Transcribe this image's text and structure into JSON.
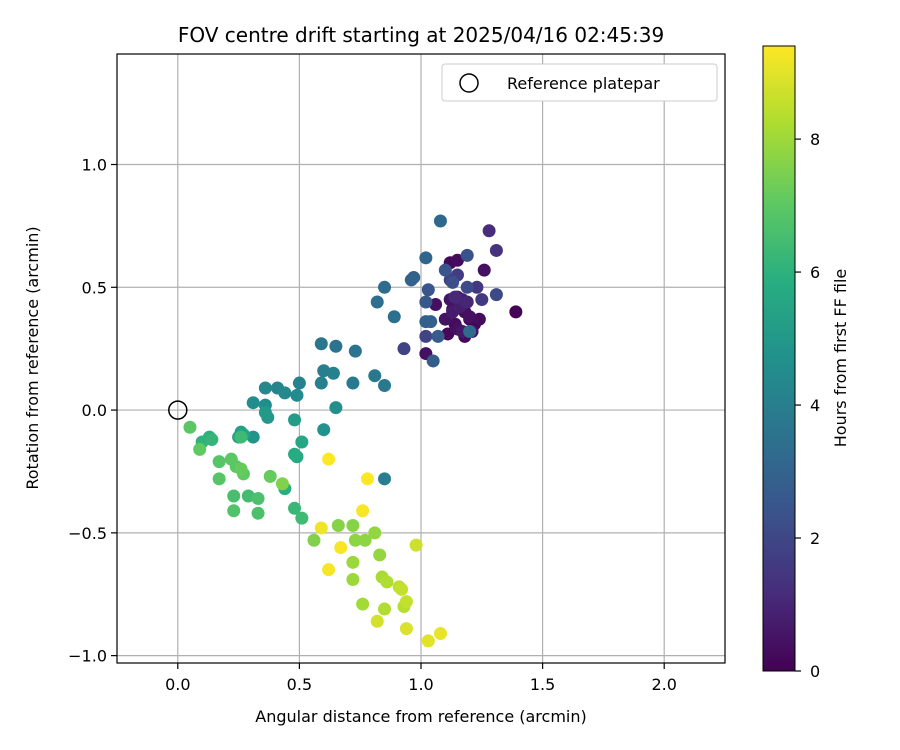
{
  "chart_data": {
    "type": "scatter",
    "title": "FOV centre drift starting at 2025/04/16 02:45:39",
    "xlabel": "Angular distance from reference (arcmin)",
    "ylabel": "Rotation from reference (arcmin)",
    "xlim": [
      -0.25,
      2.25
    ],
    "ylim": [
      -1.03,
      1.45
    ],
    "xticks": [
      0.0,
      0.5,
      1.0,
      1.5,
      2.0
    ],
    "yticks": [
      -1.0,
      -0.5,
      0.0,
      0.5,
      1.0
    ],
    "xtick_labels": [
      "0.0",
      "0.5",
      "1.0",
      "1.5",
      "2.0"
    ],
    "ytick_labels": [
      "−1.0",
      "−0.5",
      "0.0",
      "0.5",
      "1.0"
    ],
    "grid": true,
    "legend": {
      "position": "top-right",
      "entries": [
        "Reference platepar"
      ]
    },
    "colormap": "viridis",
    "colorbar": {
      "label": "Hours from first FF file",
      "range": [
        0,
        9.4
      ],
      "ticks": [
        0,
        2,
        4,
        6,
        8
      ],
      "tick_labels": [
        "0",
        "2",
        "4",
        "6",
        "8"
      ]
    },
    "reference_point": {
      "x": 0.0,
      "y": 0.0
    },
    "points": [
      {
        "x": 1.39,
        "y": 0.4,
        "c": 0.1
      },
      {
        "x": 1.12,
        "y": 0.6,
        "c": 0.2
      },
      {
        "x": 1.15,
        "y": 0.61,
        "c": 0.3
      },
      {
        "x": 1.2,
        "y": 0.37,
        "c": 0.2
      },
      {
        "x": 1.18,
        "y": 0.3,
        "c": 0.2
      },
      {
        "x": 1.22,
        "y": 0.35,
        "c": 0.1
      },
      {
        "x": 1.13,
        "y": 0.41,
        "c": 0.3
      },
      {
        "x": 1.16,
        "y": 0.43,
        "c": 0.4
      },
      {
        "x": 1.14,
        "y": 0.35,
        "c": 0.3
      },
      {
        "x": 1.11,
        "y": 0.31,
        "c": 0.2
      },
      {
        "x": 1.15,
        "y": 0.33,
        "c": 0.4
      },
      {
        "x": 1.18,
        "y": 0.4,
        "c": 0.3
      },
      {
        "x": 1.1,
        "y": 0.37,
        "c": 0.5
      },
      {
        "x": 1.24,
        "y": 0.37,
        "c": 0.3
      },
      {
        "x": 1.17,
        "y": 0.32,
        "c": 0.6
      },
      {
        "x": 1.21,
        "y": 0.32,
        "c": 0.5
      },
      {
        "x": 1.06,
        "y": 0.43,
        "c": 0.4
      },
      {
        "x": 1.12,
        "y": 0.45,
        "c": 0.5
      },
      {
        "x": 1.02,
        "y": 0.23,
        "c": 0.4
      },
      {
        "x": 1.26,
        "y": 0.57,
        "c": 0.4
      },
      {
        "x": 1.2,
        "y": 0.38,
        "c": 0.4
      },
      {
        "x": 1.15,
        "y": 0.46,
        "c": 0.6
      },
      {
        "x": 1.13,
        "y": 0.4,
        "c": 0.7
      },
      {
        "x": 1.16,
        "y": 0.42,
        "c": 0.8
      },
      {
        "x": 1.17,
        "y": 0.45,
        "c": 0.9
      },
      {
        "x": 1.19,
        "y": 0.44,
        "c": 1.0
      },
      {
        "x": 1.14,
        "y": 0.46,
        "c": 1.1
      },
      {
        "x": 1.28,
        "y": 0.73,
        "c": 1.2
      },
      {
        "x": 1.31,
        "y": 0.65,
        "c": 1.4
      },
      {
        "x": 1.23,
        "y": 0.5,
        "c": 1.5
      },
      {
        "x": 1.25,
        "y": 0.45,
        "c": 1.6
      },
      {
        "x": 1.15,
        "y": 0.55,
        "c": 1.7
      },
      {
        "x": 1.12,
        "y": 0.53,
        "c": 1.8
      },
      {
        "x": 1.02,
        "y": 0.3,
        "c": 1.9
      },
      {
        "x": 0.93,
        "y": 0.25,
        "c": 1.9
      },
      {
        "x": 1.31,
        "y": 0.47,
        "c": 2.1
      },
      {
        "x": 1.19,
        "y": 0.5,
        "c": 2.2
      },
      {
        "x": 1.13,
        "y": 0.52,
        "c": 2.3
      },
      {
        "x": 1.19,
        "y": 0.63,
        "c": 2.4
      },
      {
        "x": 1.1,
        "y": 0.57,
        "c": 2.5
      },
      {
        "x": 1.03,
        "y": 0.49,
        "c": 2.5
      },
      {
        "x": 1.02,
        "y": 0.44,
        "c": 2.6
      },
      {
        "x": 1.07,
        "y": 0.3,
        "c": 2.7
      },
      {
        "x": 1.05,
        "y": 0.2,
        "c": 2.8
      },
      {
        "x": 1.02,
        "y": 0.36,
        "c": 2.9
      },
      {
        "x": 1.04,
        "y": 0.36,
        "c": 2.9
      },
      {
        "x": 0.97,
        "y": 0.54,
        "c": 2.9
      },
      {
        "x": 0.96,
        "y": 0.53,
        "c": 3.0
      },
      {
        "x": 1.02,
        "y": 0.62,
        "c": 3.1
      },
      {
        "x": 1.08,
        "y": 0.77,
        "c": 3.2
      },
      {
        "x": 1.2,
        "y": 0.32,
        "c": 3.3
      },
      {
        "x": 0.85,
        "y": 0.5,
        "c": 3.3
      },
      {
        "x": 0.82,
        "y": 0.44,
        "c": 3.4
      },
      {
        "x": 0.89,
        "y": 0.38,
        "c": 3.5
      },
      {
        "x": 0.73,
        "y": 0.24,
        "c": 3.6
      },
      {
        "x": 0.65,
        "y": 0.26,
        "c": 3.6
      },
      {
        "x": 0.59,
        "y": 0.27,
        "c": 3.7
      },
      {
        "x": 0.81,
        "y": 0.14,
        "c": 3.8
      },
      {
        "x": 0.85,
        "y": 0.1,
        "c": 3.8
      },
      {
        "x": 0.72,
        "y": 0.11,
        "c": 3.9
      },
      {
        "x": 0.6,
        "y": 0.16,
        "c": 4.0
      },
      {
        "x": 0.59,
        "y": 0.11,
        "c": 4.1
      },
      {
        "x": 0.64,
        "y": 0.15,
        "c": 4.1
      },
      {
        "x": 0.5,
        "y": 0.11,
        "c": 4.2
      },
      {
        "x": 0.41,
        "y": 0.09,
        "c": 4.3
      },
      {
        "x": 0.36,
        "y": 0.09,
        "c": 4.4
      },
      {
        "x": 0.44,
        "y": 0.07,
        "c": 4.4
      },
      {
        "x": 0.49,
        "y": 0.06,
        "c": 4.5
      },
      {
        "x": 0.31,
        "y": 0.03,
        "c": 4.6
      },
      {
        "x": 0.36,
        "y": 0.02,
        "c": 4.6
      },
      {
        "x": 0.65,
        "y": 0.01,
        "c": 4.7
      },
      {
        "x": 0.85,
        "y": -0.28,
        "c": 4.0
      },
      {
        "x": 0.6,
        "y": -0.08,
        "c": 4.8
      },
      {
        "x": 0.31,
        "y": -0.11,
        "c": 4.9
      },
      {
        "x": 0.37,
        "y": -0.03,
        "c": 5.0
      },
      {
        "x": 0.36,
        "y": -0.01,
        "c": 5.1
      },
      {
        "x": 0.48,
        "y": -0.04,
        "c": 5.2
      },
      {
        "x": 0.26,
        "y": -0.09,
        "c": 5.3
      },
      {
        "x": 0.25,
        "y": -0.11,
        "c": 5.4
      },
      {
        "x": 0.27,
        "y": -0.1,
        "c": 5.5
      },
      {
        "x": 0.51,
        "y": -0.13,
        "c": 5.6
      },
      {
        "x": 0.49,
        "y": -0.19,
        "c": 5.7
      },
      {
        "x": 0.48,
        "y": -0.18,
        "c": 5.8
      },
      {
        "x": 0.44,
        "y": -0.32,
        "c": 5.9
      },
      {
        "x": 0.13,
        "y": -0.11,
        "c": 6.0
      },
      {
        "x": 0.1,
        "y": -0.13,
        "c": 6.1
      },
      {
        "x": 0.14,
        "y": -0.12,
        "c": 6.2
      },
      {
        "x": 0.48,
        "y": -0.4,
        "c": 6.3
      },
      {
        "x": 0.51,
        "y": -0.44,
        "c": 6.4
      },
      {
        "x": 0.26,
        "y": -0.11,
        "c": 6.4
      },
      {
        "x": 0.29,
        "y": -0.35,
        "c": 6.5
      },
      {
        "x": 0.23,
        "y": -0.35,
        "c": 6.6
      },
      {
        "x": 0.33,
        "y": -0.36,
        "c": 6.7
      },
      {
        "x": 0.33,
        "y": -0.42,
        "c": 6.7
      },
      {
        "x": 0.23,
        "y": -0.41,
        "c": 6.8
      },
      {
        "x": 0.17,
        "y": -0.28,
        "c": 6.9
      },
      {
        "x": 0.17,
        "y": -0.21,
        "c": 6.9
      },
      {
        "x": 0.22,
        "y": -0.2,
        "c": 7.0
      },
      {
        "x": 0.24,
        "y": -0.23,
        "c": 7.0
      },
      {
        "x": 0.27,
        "y": -0.26,
        "c": 7.1
      },
      {
        "x": 0.26,
        "y": -0.24,
        "c": 7.2
      },
      {
        "x": 0.38,
        "y": -0.27,
        "c": 7.2
      },
      {
        "x": 0.05,
        "y": -0.07,
        "c": 7.0
      },
      {
        "x": 0.09,
        "y": -0.16,
        "c": 7.1
      },
      {
        "x": 0.43,
        "y": -0.3,
        "c": 7.6
      },
      {
        "x": 0.56,
        "y": -0.53,
        "c": 7.6
      },
      {
        "x": 0.66,
        "y": -0.47,
        "c": 7.7
      },
      {
        "x": 0.72,
        "y": -0.47,
        "c": 7.7
      },
      {
        "x": 0.73,
        "y": -0.53,
        "c": 7.8
      },
      {
        "x": 0.77,
        "y": -0.53,
        "c": 7.8
      },
      {
        "x": 0.81,
        "y": -0.5,
        "c": 7.9
      },
      {
        "x": 0.83,
        "y": -0.59,
        "c": 7.9
      },
      {
        "x": 0.72,
        "y": -0.62,
        "c": 8.0
      },
      {
        "x": 0.72,
        "y": -0.69,
        "c": 8.0
      },
      {
        "x": 0.76,
        "y": -0.79,
        "c": 8.1
      },
      {
        "x": 0.84,
        "y": -0.68,
        "c": 8.2
      },
      {
        "x": 0.86,
        "y": -0.7,
        "c": 8.3
      },
      {
        "x": 0.85,
        "y": -0.81,
        "c": 8.3
      },
      {
        "x": 0.93,
        "y": -0.8,
        "c": 8.4
      },
      {
        "x": 0.91,
        "y": -0.72,
        "c": 8.5
      },
      {
        "x": 0.92,
        "y": -0.73,
        "c": 8.6
      },
      {
        "x": 0.94,
        "y": -0.78,
        "c": 8.6
      },
      {
        "x": 0.98,
        "y": -0.55,
        "c": 8.7
      },
      {
        "x": 0.82,
        "y": -0.86,
        "c": 8.8
      },
      {
        "x": 0.94,
        "y": -0.89,
        "c": 8.9
      },
      {
        "x": 1.03,
        "y": -0.94,
        "c": 9.0
      },
      {
        "x": 1.08,
        "y": -0.91,
        "c": 9.1
      },
      {
        "x": 0.59,
        "y": -0.48,
        "c": 9.2
      },
      {
        "x": 0.62,
        "y": -0.65,
        "c": 9.3
      },
      {
        "x": 0.67,
        "y": -0.56,
        "c": 9.3
      },
      {
        "x": 0.76,
        "y": -0.41,
        "c": 9.3
      },
      {
        "x": 0.78,
        "y": -0.28,
        "c": 9.4
      },
      {
        "x": 0.62,
        "y": -0.2,
        "c": 9.4
      }
    ]
  }
}
